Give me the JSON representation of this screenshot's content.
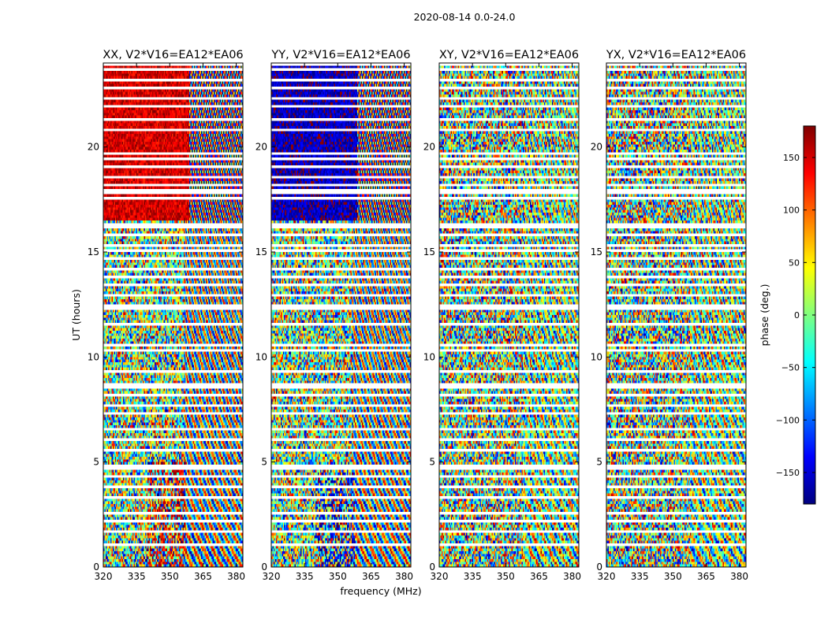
{
  "figure": {
    "suptitle": "2020-08-14 0.0-24.0",
    "shared_xlabel": "frequency (MHz)",
    "shared_ylabel": "UT (hours)"
  },
  "chart_data": [
    {
      "type": "heatmap",
      "title": "XX, V2*V16=EA12*EA06",
      "xlabel": "frequency (MHz)",
      "ylabel": "UT (hours)",
      "xlim": [
        320,
        383
      ],
      "ylim": [
        0,
        24
      ],
      "xticks": [
        "320",
        "335",
        "350",
        "365",
        "380"
      ],
      "yticks": [
        "0",
        "5",
        "10",
        "15",
        "20"
      ],
      "pattern": "strong",
      "pol": "XX",
      "coherent_value_deg": 150,
      "coherent_ut_range": [
        16.5,
        24
      ],
      "coherent_freq_break": 359
    },
    {
      "type": "heatmap",
      "title": "YY, V2*V16=EA12*EA06",
      "xlabel": "frequency (MHz)",
      "ylabel": "UT (hours)",
      "xlim": [
        320,
        383
      ],
      "ylim": [
        0,
        24
      ],
      "xticks": [
        "320",
        "335",
        "350",
        "365",
        "380"
      ],
      "yticks": [
        "0",
        "5",
        "10",
        "15",
        "20"
      ],
      "pattern": "strong",
      "pol": "YY",
      "coherent_value_deg": -160,
      "coherent_ut_range": [
        16.5,
        24
      ],
      "coherent_freq_break": 359
    },
    {
      "type": "heatmap",
      "title": "XY, V2*V16=EA12*EA06",
      "xlabel": "frequency (MHz)",
      "ylabel": "UT (hours)",
      "xlim": [
        320,
        383
      ],
      "ylim": [
        0,
        24
      ],
      "xticks": [
        "320",
        "335",
        "350",
        "365",
        "380"
      ],
      "yticks": [
        "0",
        "5",
        "10",
        "15",
        "20"
      ],
      "pattern": "noise",
      "pol": "XY"
    },
    {
      "type": "heatmap",
      "title": "YX, V2*V16=EA12*EA06",
      "xlabel": "frequency (MHz)",
      "ylabel": "UT (hours)",
      "xlim": [
        320,
        383
      ],
      "ylim": [
        0,
        24
      ],
      "xticks": [
        "320",
        "335",
        "350",
        "365",
        "380"
      ],
      "yticks": [
        "0",
        "5",
        "10",
        "15",
        "20"
      ],
      "pattern": "noise",
      "pol": "YX"
    }
  ],
  "colorbar": {
    "label": "phase (deg.)",
    "range": [
      -180,
      180
    ],
    "ticks": [
      "150",
      "100",
      "50",
      "0",
      "−50",
      "−100",
      "−150"
    ],
    "tick_values": [
      150,
      100,
      50,
      0,
      -50,
      -100,
      -150
    ],
    "colormap": "jet",
    "jet_stops": [
      "#00007f",
      "#0000ff",
      "#007fff",
      "#00ffff",
      "#7fff7f",
      "#ffff00",
      "#ff7f00",
      "#ff0000",
      "#7f0000"
    ]
  },
  "flagged_ut_hours": [
    0.95,
    1.6,
    2.1,
    2.55,
    3.25,
    3.75,
    4.25,
    4.6,
    4.75,
    5.55,
    6.05,
    6.5,
    7.35,
    7.7,
    8.15,
    8.5,
    8.65,
    9.3,
    10.3,
    10.5,
    11.5,
    12.3,
    12.5,
    12.9,
    13.45,
    13.85,
    14.25,
    14.7,
    15.05,
    15.35,
    15.8,
    16.15,
    16.35,
    17.65,
    17.8,
    18.0,
    18.25,
    18.6,
    19.05,
    19.5,
    19.7,
    20.9,
    21.35,
    22.0,
    22.4,
    22.85,
    23.3,
    23.7,
    23.95
  ]
}
